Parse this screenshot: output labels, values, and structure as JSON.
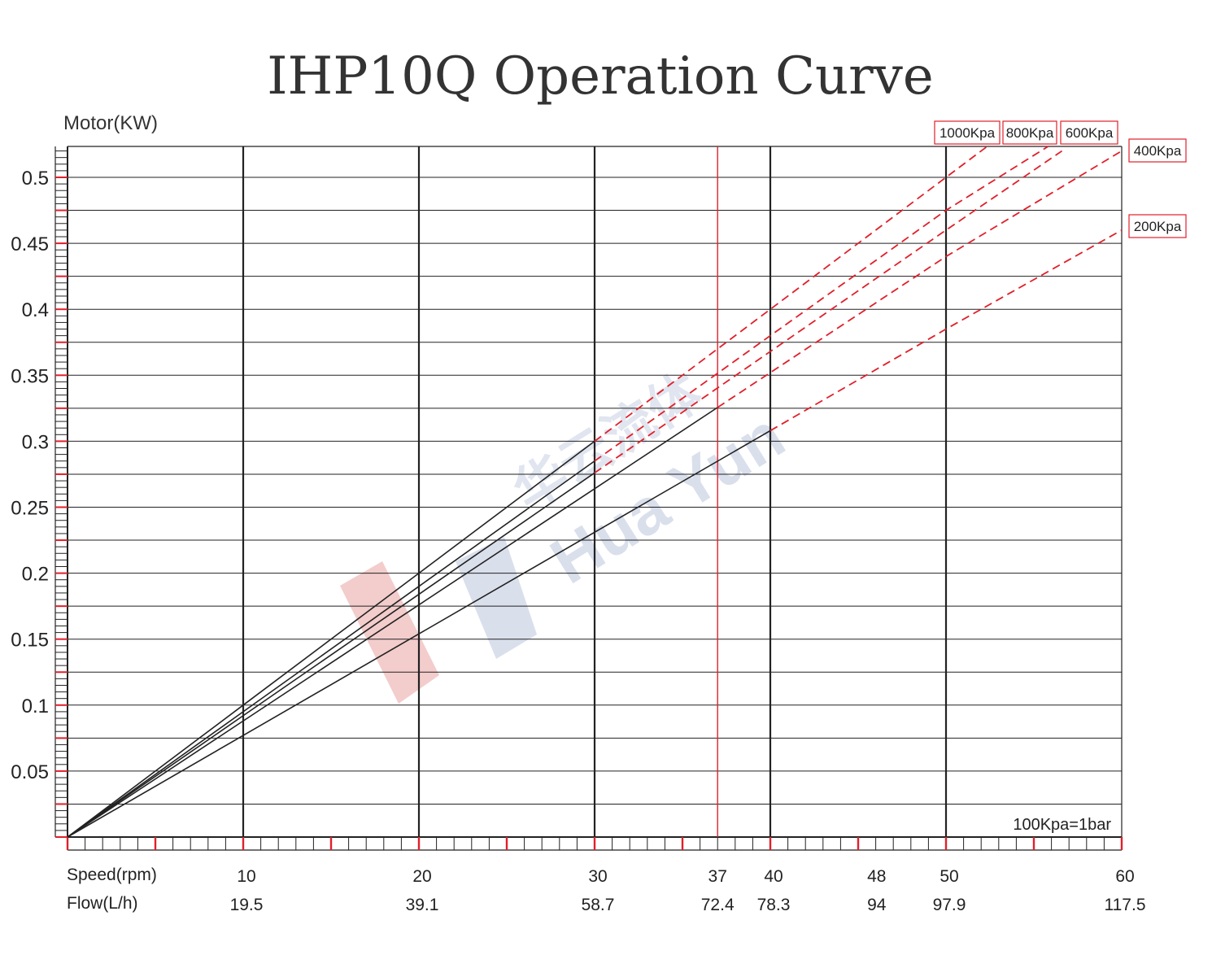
{
  "chart_data": {
    "type": "line",
    "title": "IHP10Q Operation Curve",
    "ylabel": "Motor(KW)",
    "x_axis_labels": {
      "speed": "Speed(rpm)",
      "flow": "Flow(L/h)"
    },
    "xlim": [
      0,
      60
    ],
    "ylim": [
      0,
      0.52
    ],
    "y_ticks": [
      {
        "value": 0.05,
        "label": "0.05"
      },
      {
        "value": 0.1,
        "label": "0.1"
      },
      {
        "value": 0.15,
        "label": "0.15"
      },
      {
        "value": 0.2,
        "label": "0.2"
      },
      {
        "value": 0.25,
        "label": "0.25"
      },
      {
        "value": 0.3,
        "label": "0.3"
      },
      {
        "value": 0.35,
        "label": "0.35"
      },
      {
        "value": 0.4,
        "label": "0.4"
      },
      {
        "value": 0.45,
        "label": "0.45"
      },
      {
        "value": 0.5,
        "label": "0.5"
      }
    ],
    "x_ticks": [
      {
        "value": 10,
        "speed": "10",
        "flow": "19.5"
      },
      {
        "value": 20,
        "speed": "20",
        "flow": "39.1"
      },
      {
        "value": 30,
        "speed": "30",
        "flow": "58.7"
      },
      {
        "value": 37,
        "speed": "37",
        "flow": "72.4"
      },
      {
        "value": 40,
        "speed": "40",
        "flow": "78.3"
      },
      {
        "value": 48,
        "speed": "48",
        "flow": "94"
      },
      {
        "value": 50,
        "speed": "50",
        "flow": "97.9"
      },
      {
        "value": 60,
        "speed": "60",
        "flow": "117.5"
      }
    ],
    "major_vlines": [
      10,
      20,
      30,
      40,
      50
    ],
    "red_vlines": [
      37
    ],
    "series": [
      {
        "name": "1000Kpa",
        "solid": [
          [
            0,
            0
          ],
          [
            10,
            0.1
          ],
          [
            20,
            0.2
          ],
          [
            30,
            0.3
          ]
        ],
        "dashed": [
          [
            30,
            0.3
          ],
          [
            50,
            0.5
          ],
          [
            53,
            0.53
          ]
        ]
      },
      {
        "name": "800Kpa",
        "solid": [
          [
            0,
            0
          ],
          [
            10,
            0.095
          ],
          [
            20,
            0.19
          ],
          [
            30,
            0.285
          ]
        ],
        "dashed": [
          [
            30,
            0.285
          ],
          [
            50,
            0.475
          ],
          [
            56.6,
            0.53
          ]
        ]
      },
      {
        "name": "600Kpa",
        "solid": [
          [
            0,
            0
          ],
          [
            10,
            0.092
          ],
          [
            20,
            0.184
          ],
          [
            30,
            0.276
          ]
        ],
        "dashed": [
          [
            30,
            0.276
          ],
          [
            50,
            0.46
          ],
          [
            56.6,
            0.52
          ]
        ]
      },
      {
        "name": "400Kpa",
        "solid": [
          [
            0,
            0
          ],
          [
            10,
            0.088
          ],
          [
            20,
            0.176
          ],
          [
            30,
            0.264
          ],
          [
            37,
            0.3256
          ]
        ],
        "dashed": [
          [
            37,
            0.3256
          ],
          [
            50,
            0.44
          ],
          [
            60,
            0.52
          ]
        ]
      },
      {
        "name": "200Kpa",
        "solid": [
          [
            0,
            0
          ],
          [
            10,
            0.077
          ],
          [
            20,
            0.154
          ],
          [
            30,
            0.231
          ],
          [
            40,
            0.308
          ]
        ],
        "dashed": [
          [
            40,
            0.308
          ],
          [
            50,
            0.385
          ],
          [
            60,
            0.46
          ]
        ]
      }
    ],
    "series_labels": [
      {
        "name": "1000Kpa",
        "text": "1000Kpa"
      },
      {
        "name": "800Kpa",
        "text": "800Kpa"
      },
      {
        "name": "600Kpa",
        "text": "600Kpa"
      },
      {
        "name": "400Kpa",
        "text": "400Kpa"
      },
      {
        "name": "200Kpa",
        "text": "200Kpa"
      }
    ],
    "note": "100Kpa=1bar",
    "watermark": {
      "brand": "Hua Yun",
      "chinese": "华云流体"
    },
    "colors": {
      "solid": "#222222",
      "dashed": "#e0202a",
      "grid": "#222222",
      "red_marker": "#e0202a",
      "label_border": "#e0202a",
      "watermark_red": "#f2c7c7",
      "watermark_blue": "#d6dcea"
    }
  }
}
